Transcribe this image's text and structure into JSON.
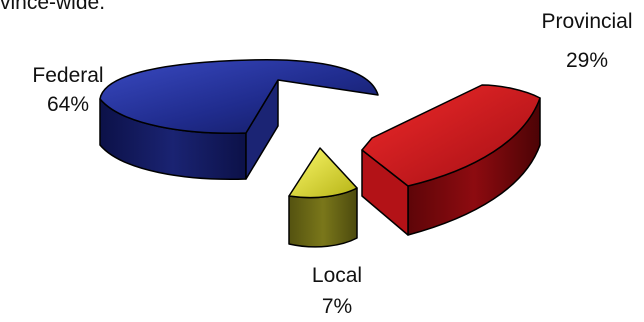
{
  "header_text": "vince-wide.",
  "chart_data": {
    "type": "pie",
    "style": "3d-exploded",
    "slices": [
      {
        "label": "Federal",
        "value": 64,
        "value_label": "64%",
        "color": "#1f2a86"
      },
      {
        "label": "Provincial",
        "value": 29,
        "value_label": "29%",
        "color": "#c8171c"
      },
      {
        "label": "Local",
        "value": 7,
        "value_label": "7%",
        "color": "#c9c61e"
      }
    ],
    "legend": "none"
  }
}
